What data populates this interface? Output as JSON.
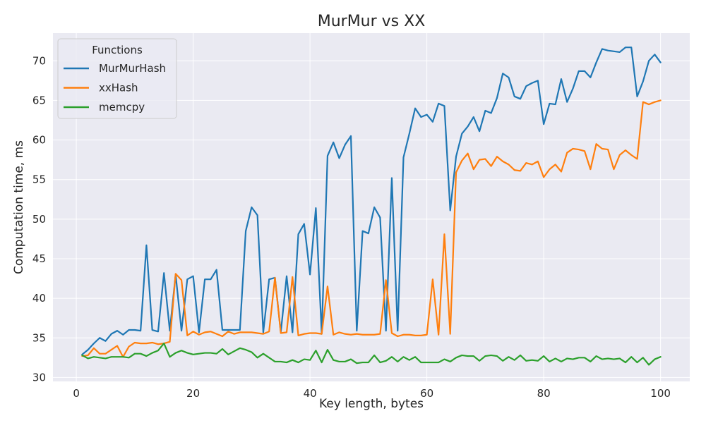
{
  "chart_data": {
    "type": "line",
    "title": "MurMur vs XX",
    "xlabel": "Key length, bytes",
    "ylabel": "Computation time, ms",
    "xlim": [
      -4,
      105
    ],
    "ylim": [
      29.5,
      73.5
    ],
    "xticks": [
      0,
      20,
      40,
      60,
      80,
      100
    ],
    "yticks": [
      30,
      35,
      40,
      45,
      50,
      55,
      60,
      65,
      70
    ],
    "grid": true,
    "background": "#eaeaf2",
    "legend": {
      "title": "Functions",
      "placement": "top-left"
    },
    "x": [
      1,
      2,
      3,
      4,
      5,
      6,
      7,
      8,
      9,
      10,
      11,
      12,
      13,
      14,
      15,
      16,
      17,
      18,
      19,
      20,
      21,
      22,
      23,
      24,
      25,
      26,
      27,
      28,
      29,
      30,
      31,
      32,
      33,
      34,
      35,
      36,
      37,
      38,
      39,
      40,
      41,
      42,
      43,
      44,
      45,
      46,
      47,
      48,
      49,
      50,
      51,
      52,
      53,
      54,
      55,
      56,
      57,
      58,
      59,
      60,
      61,
      62,
      63,
      64,
      65,
      66,
      67,
      68,
      69,
      70,
      71,
      72,
      73,
      74,
      75,
      76,
      77,
      78,
      79,
      80,
      81,
      82,
      83,
      84,
      85,
      86,
      87,
      88,
      89,
      90,
      91,
      92,
      93,
      94,
      95,
      96,
      97,
      98,
      99,
      100
    ],
    "series": [
      {
        "name": "MurMurHash",
        "color": "#1f77b4",
        "values": [
          32.9,
          33.5,
          34.3,
          35.0,
          34.6,
          35.5,
          35.9,
          35.4,
          36.0,
          36.0,
          35.9,
          46.7,
          36.0,
          35.8,
          43.2,
          35.9,
          43.0,
          35.9,
          42.4,
          42.8,
          35.7,
          42.4,
          42.4,
          43.6,
          36.0,
          36.0,
          36.0,
          36.0,
          48.5,
          51.5,
          50.5,
          35.7,
          42.4,
          42.6,
          35.7,
          42.8,
          35.7,
          48.1,
          49.4,
          43.0,
          51.4,
          35.5,
          58.0,
          59.7,
          57.7,
          59.4,
          60.5,
          35.9,
          48.5,
          48.2,
          51.5,
          50.2,
          35.9,
          55.2,
          35.9,
          57.8,
          60.8,
          64.0,
          62.9,
          63.2,
          62.3,
          64.6,
          64.3,
          51.1,
          57.9,
          60.8,
          61.7,
          62.9,
          61.1,
          63.7,
          63.4,
          65.3,
          68.4,
          67.9,
          65.5,
          65.2,
          66.8,
          67.2,
          67.5,
          62.0,
          64.6,
          64.5,
          67.7,
          64.8,
          66.5,
          68.7,
          68.7,
          67.9,
          69.8,
          71.5,
          71.3,
          71.2,
          71.1,
          71.7,
          71.7,
          65.5,
          67.4,
          70.0,
          70.8,
          69.8
        ]
      },
      {
        "name": "xxHash",
        "color": "#ff7f0e",
        "values": [
          32.7,
          32.8,
          33.7,
          33.0,
          33.0,
          33.5,
          34.0,
          32.6,
          33.9,
          34.4,
          34.3,
          34.3,
          34.4,
          34.2,
          34.3,
          34.5,
          43.1,
          42.3,
          35.3,
          35.8,
          35.4,
          35.7,
          35.8,
          35.5,
          35.2,
          35.8,
          35.5,
          35.7,
          35.7,
          35.7,
          35.6,
          35.5,
          35.8,
          42.6,
          35.6,
          35.7,
          42.7,
          35.3,
          35.5,
          35.6,
          35.6,
          35.5,
          41.5,
          35.4,
          35.7,
          35.5,
          35.4,
          35.5,
          35.4,
          35.4,
          35.4,
          35.5,
          42.3,
          35.6,
          35.2,
          35.4,
          35.4,
          35.3,
          35.3,
          35.4,
          42.4,
          35.4,
          48.1,
          35.5,
          55.9,
          57.4,
          58.3,
          56.3,
          57.5,
          57.6,
          56.7,
          57.9,
          57.3,
          56.9,
          56.2,
          56.1,
          57.1,
          56.9,
          57.3,
          55.3,
          56.3,
          56.9,
          56.0,
          58.4,
          58.9,
          58.8,
          58.6,
          56.3,
          59.5,
          58.9,
          58.8,
          56.3,
          58.1,
          58.7,
          58.1,
          57.6,
          64.8,
          64.5,
          64.8,
          65.0
        ]
      },
      {
        "name": "memcpy",
        "color": "#2ca02c",
        "values": [
          32.8,
          32.4,
          32.6,
          32.5,
          32.4,
          32.6,
          32.6,
          32.6,
          32.5,
          33.0,
          33.0,
          32.7,
          33.1,
          33.4,
          34.3,
          32.6,
          33.1,
          33.4,
          33.1,
          32.9,
          33.0,
          33.1,
          33.1,
          33.0,
          33.6,
          32.9,
          33.3,
          33.7,
          33.5,
          33.2,
          32.5,
          33.0,
          32.5,
          32.0,
          32.0,
          31.9,
          32.2,
          31.9,
          32.3,
          32.2,
          33.4,
          31.9,
          33.5,
          32.2,
          32.0,
          32.0,
          32.3,
          31.8,
          31.9,
          31.9,
          32.8,
          31.9,
          32.1,
          32.6,
          32.0,
          32.6,
          32.2,
          32.6,
          31.9,
          31.9,
          31.9,
          31.9,
          32.3,
          32.0,
          32.5,
          32.8,
          32.7,
          32.7,
          32.1,
          32.7,
          32.8,
          32.7,
          32.1,
          32.6,
          32.2,
          32.8,
          32.1,
          32.2,
          32.1,
          32.7,
          32.0,
          32.4,
          32.0,
          32.4,
          32.3,
          32.5,
          32.5,
          32.0,
          32.7,
          32.3,
          32.4,
          32.3,
          32.4,
          31.9,
          32.6,
          31.9,
          32.5,
          31.6,
          32.3,
          32.6
        ]
      }
    ]
  }
}
